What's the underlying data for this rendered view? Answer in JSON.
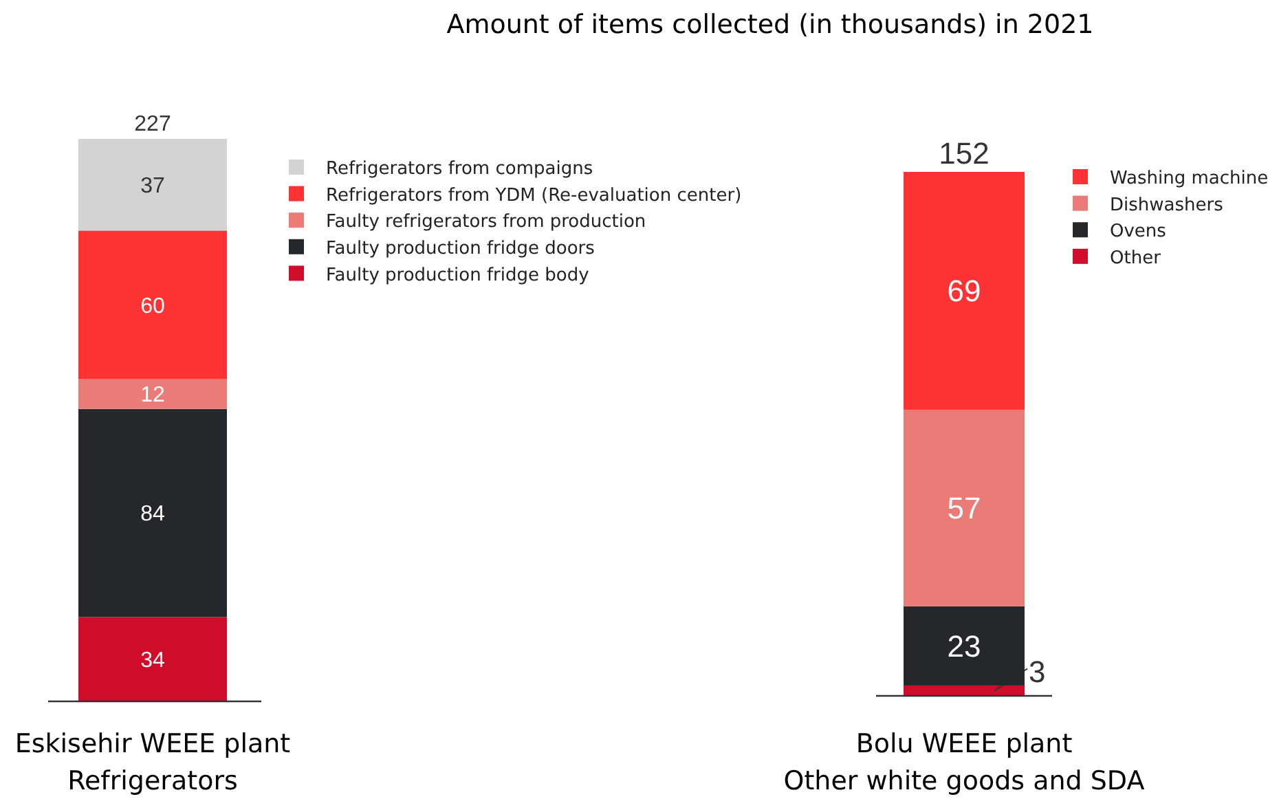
{
  "chart_data": [
    {
      "type": "bar",
      "categories": [
        "Eskisehir WEEE plant\nRefrigerators"
      ],
      "stacked": true,
      "data_labels": true,
      "totals": [
        "227"
      ],
      "legend": "right",
      "series": [
        {
          "name": "Faulty production fridge body",
          "color": "#d00c2b",
          "values": [
            34
          ]
        },
        {
          "name": "Faulty production fridge doors",
          "color": "#25282b",
          "values": [
            84
          ]
        },
        {
          "name": "Faulty refrigerators from production",
          "color": "#eb7b76",
          "values": [
            12
          ]
        },
        {
          "name": "Refrigerators from YDM (Re-evaluation center)",
          "color": "#ff3333",
          "values": [
            60
          ]
        },
        {
          "name": "Refrigerators from compaigns",
          "color": "#d3d3d3",
          "values": [
            37
          ]
        }
      ]
    },
    {
      "type": "bar",
      "title": "Amount of items collected (in thousands) in 2021",
      "categories": [
        "Bolu WEEE plant\nOther white goods and SDA"
      ],
      "stacked": true,
      "data_labels": true,
      "totals": [
        "152"
      ],
      "legend": "right",
      "series": [
        {
          "name": "Other",
          "color": "#d00c2b",
          "values": [
            3
          ]
        },
        {
          "name": "Ovens",
          "color": "#25282b",
          "values": [
            23
          ]
        },
        {
          "name": "Dishwashers",
          "color": "#eb7b76",
          "values": [
            57
          ]
        },
        {
          "name": "Washing machine",
          "color": "#ff3333",
          "values": [
            69
          ]
        }
      ]
    }
  ]
}
